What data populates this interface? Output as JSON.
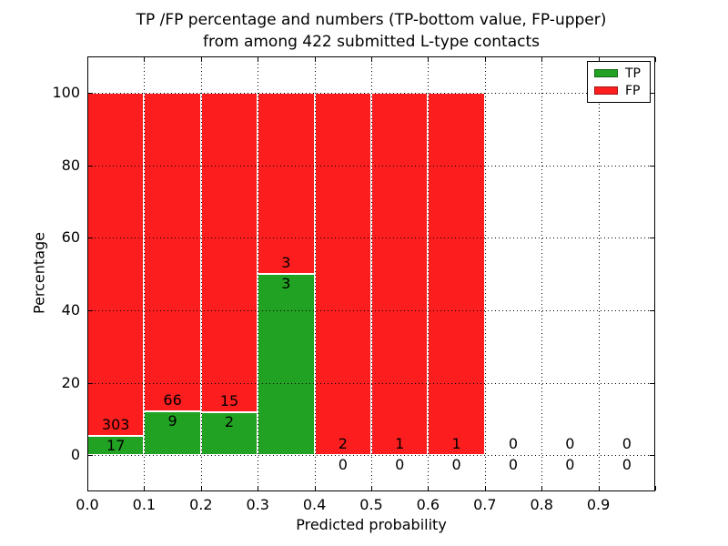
{
  "figure": {
    "title_line1": "TP /FP percentage and numbers (TP-bottom value, FP-upper)",
    "title_line2": "from among 422 submitted L-type contacts",
    "xlabel": "Predicted probability",
    "ylabel": "Percentage"
  },
  "colors": {
    "tp": "#22a222",
    "fp": "#fc1e1e",
    "grid": "#000000",
    "axis": "#000000",
    "bar_edge": "#ffffff",
    "background": "#ffffff"
  },
  "chart_data": {
    "type": "bar",
    "stacked": true,
    "title": "TP /FP percentage and numbers (TP-bottom value, FP-upper) from among 422 submitted L-type contacts",
    "xlabel": "Predicted probability",
    "ylabel": "Percentage",
    "xlim": [
      0.0,
      1.0
    ],
    "ylim": [
      -10,
      110
    ],
    "grid": "dotted, drawn above bars",
    "legend_position": "upper right",
    "legend": [
      {
        "label": "TP",
        "color": "#22a222"
      },
      {
        "label": "FP",
        "color": "#fc1e1e"
      }
    ],
    "x_tick_values": [
      0.0,
      0.1,
      0.2,
      0.3,
      0.4,
      0.5,
      0.6,
      0.7,
      0.8,
      0.9
    ],
    "x_tick_labels": [
      "0.0",
      "0.1",
      "0.2",
      "0.3",
      "0.4",
      "0.5",
      "0.6",
      "0.7",
      "0.8",
      "0.9"
    ],
    "axis_tick_values_x": [
      0.0,
      0.1,
      0.2,
      0.3,
      0.4,
      0.5,
      0.6,
      0.7,
      0.8,
      0.9,
      1.0
    ],
    "y_tick_values": [
      0,
      20,
      40,
      60,
      80,
      100
    ],
    "y_tick_labels": [
      "0",
      "20",
      "40",
      "60",
      "80",
      "100"
    ],
    "bins": [
      {
        "x0": 0.0,
        "x1": 0.1,
        "tp": 17,
        "fp": 303,
        "tp_pct": 5.31,
        "fp_pct": 94.69
      },
      {
        "x0": 0.1,
        "x1": 0.2,
        "tp": 9,
        "fp": 66,
        "tp_pct": 12.0,
        "fp_pct": 88.0
      },
      {
        "x0": 0.2,
        "x1": 0.3,
        "tp": 2,
        "fp": 15,
        "tp_pct": 11.76,
        "fp_pct": 88.24
      },
      {
        "x0": 0.3,
        "x1": 0.4,
        "tp": 3,
        "fp": 3,
        "tp_pct": 50.0,
        "fp_pct": 50.0
      },
      {
        "x0": 0.4,
        "x1": 0.5,
        "tp": 0,
        "fp": 2,
        "tp_pct": 0,
        "fp_pct": 100
      },
      {
        "x0": 0.5,
        "x1": 0.6,
        "tp": 0,
        "fp": 1,
        "tp_pct": 0,
        "fp_pct": 100
      },
      {
        "x0": 0.6,
        "x1": 0.7,
        "tp": 0,
        "fp": 1,
        "tp_pct": 0,
        "fp_pct": 100
      },
      {
        "x0": 0.7,
        "x1": 0.8,
        "tp": 0,
        "fp": 0,
        "tp_pct": 0,
        "fp_pct": 0
      },
      {
        "x0": 0.8,
        "x1": 0.9,
        "tp": 0,
        "fp": 0,
        "tp_pct": 0,
        "fp_pct": 0
      },
      {
        "x0": 0.9,
        "x1": 1.0,
        "tp": 0,
        "fp": 0,
        "tp_pct": 0,
        "fp_pct": 0
      }
    ]
  }
}
